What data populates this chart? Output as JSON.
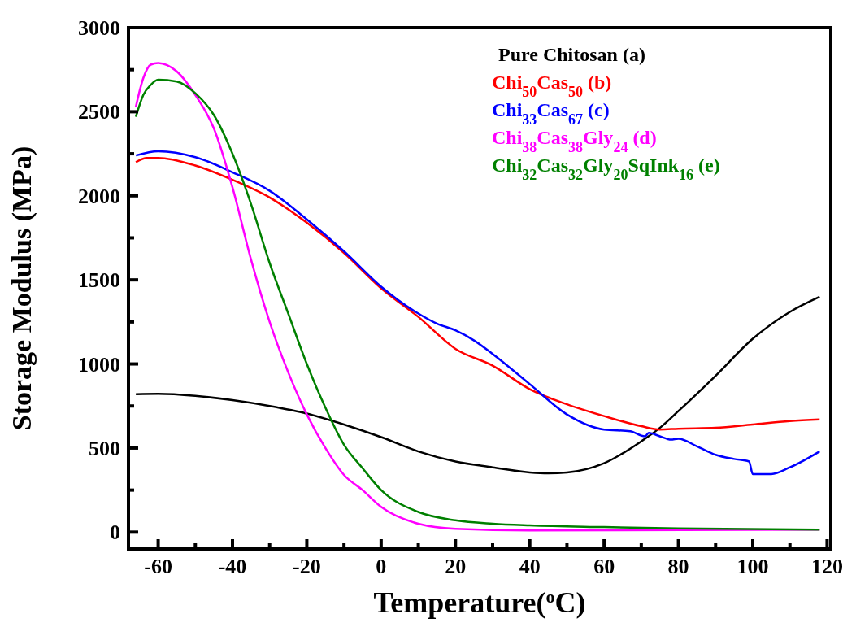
{
  "chart_data": {
    "type": "line",
    "xlabel": "Temperature($^{o}$C)",
    "ylabel": "Storage Modulus (MPa)",
    "xlim": [
      -68,
      121
    ],
    "ylim": [
      -100,
      3000
    ],
    "xticks": [
      -60,
      {
        "value": -50,
        "label": null
      },
      -40,
      {
        "value": -30,
        "label": null
      },
      -20,
      {
        "value": -10,
        "label": null
      },
      0,
      {
        "value": 10,
        "label": null
      },
      20,
      {
        "value": 30,
        "label": null
      },
      40,
      {
        "value": 50,
        "label": null
      },
      60,
      {
        "value": 70,
        "label": null
      },
      80,
      {
        "value": 90,
        "label": null
      },
      100,
      {
        "value": 110,
        "label": null
      },
      120
    ],
    "yticks": [
      0,
      {
        "value": 250,
        "label": null
      },
      500,
      {
        "value": 750,
        "label": null
      },
      1000,
      {
        "value": 1250,
        "label": null
      },
      1500,
      {
        "value": 1750,
        "label": null
      },
      2000,
      {
        "value": 2250,
        "label": null
      },
      2500,
      {
        "value": 2750,
        "label": null
      },
      3000
    ],
    "grid": false,
    "legend": "top right",
    "marker": "none",
    "line_style": "solid",
    "series": [
      {
        "name": "Pure Chitosan (a)",
        "color": "#000000",
        "x": [
          -66,
          -60,
          -50,
          -40,
          -30,
          -20,
          -10,
          0,
          10,
          20,
          30,
          40,
          45,
          50,
          60,
          70,
          75,
          80,
          90,
          100,
          110,
          118
        ],
        "values": [
          820,
          822,
          810,
          785,
          750,
          705,
          640,
          565,
          480,
          420,
          385,
          355,
          350,
          355,
          410,
          540,
          620,
          720,
          930,
          1150,
          1310,
          1400
        ]
      },
      {
        "name": "Chi$_{50}$Cas$_{50}$ (b)",
        "color": "#ff0000",
        "x": [
          -66,
          -63,
          -60,
          -50,
          -40,
          -30,
          -20,
          -10,
          0,
          10,
          20,
          30,
          40,
          50,
          60,
          70,
          75,
          80,
          90,
          100,
          110,
          118
        ],
        "values": [
          2200,
          2225,
          2225,
          2180,
          2095,
          1990,
          1840,
          1660,
          1450,
          1280,
          1090,
          990,
          850,
          760,
          690,
          630,
          610,
          615,
          620,
          640,
          660,
          670
        ]
      },
      {
        "name": "Chi$_{33}$Cas$_{67}$ (c)",
        "color": "#0000ff",
        "x": [
          -66,
          -60,
          -50,
          -40,
          -30,
          -20,
          -10,
          0,
          10,
          15,
          20,
          25,
          30,
          40,
          50,
          60,
          67,
          71,
          72,
          75,
          78,
          80,
          85,
          90,
          95,
          99,
          100,
          105,
          110,
          118
        ],
        "values": [
          2240,
          2265,
          2230,
          2140,
          2030,
          1860,
          1670,
          1460,
          1300,
          1240,
          1200,
          1140,
          1060,
          880,
          700,
          610,
          600,
          570,
          590,
          570,
          550,
          555,
          510,
          460,
          435,
          420,
          345,
          345,
          385,
          480
        ]
      },
      {
        "name": "Chi$_{38}$Cas$_{38}$Gly$_{24}$ (d)",
        "color": "#ff00ff",
        "x": [
          -66,
          -64,
          -62,
          -60,
          -55,
          -50,
          -45,
          -40,
          -35,
          -30,
          -25,
          -20,
          -15,
          -10,
          -5,
          0,
          10,
          20,
          40,
          118
        ],
        "values": [
          2530,
          2700,
          2780,
          2790,
          2740,
          2600,
          2400,
          2050,
          1620,
          1250,
          950,
          700,
          500,
          340,
          250,
          150,
          50,
          20,
          10,
          15
        ]
      },
      {
        "name": "Chi$_{32}$Cas$_{32}$Gly$_{20}$SqInk$_{16}$ (e)",
        "color": "#008000",
        "x": [
          -66,
          -64,
          -62,
          -60,
          -55,
          -50,
          -45,
          -40,
          -35,
          -30,
          -25,
          -20,
          -15,
          -10,
          -5,
          0,
          10,
          20,
          30,
          40,
          60,
          80,
          118
        ],
        "values": [
          2470,
          2600,
          2660,
          2690,
          2680,
          2610,
          2480,
          2250,
          1950,
          1600,
          1300,
          1000,
          740,
          520,
          380,
          250,
          120,
          70,
          50,
          40,
          30,
          22,
          15
        ]
      }
    ]
  }
}
